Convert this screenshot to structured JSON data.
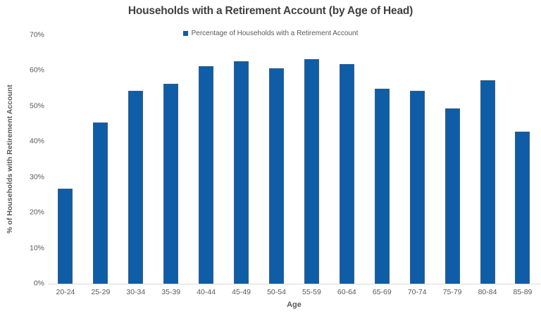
{
  "colors": {
    "bar": "#0E5DA6",
    "bar_border": "#59636C",
    "baseline": "#D9D9D9",
    "tick_text": "#595959",
    "title_text": "#404040",
    "background": "#FFFFFF"
  },
  "chart_data": {
    "type": "bar",
    "title": "Households with a Retirement Account (by Age of Head)",
    "legend": [
      "Percentage of Households with a Retirement Account"
    ],
    "legend_position": "top-center",
    "legend_marker": "filled-square",
    "xlabel": "Age",
    "ylabel": "% of Households with Retirement Account",
    "categories": [
      "20-24",
      "25-29",
      "30-34",
      "35-39",
      "40-44",
      "45-49",
      "50-54",
      "55-59",
      "60-64",
      "65-69",
      "70-74",
      "75-79",
      "80-84",
      "85-89"
    ],
    "values": [
      26.7,
      45.5,
      54.4,
      56.3,
      61.2,
      62.7,
      60.6,
      63.2,
      61.8,
      54.9,
      54.4,
      49.3,
      57.3,
      42.9
    ],
    "ylim": [
      0,
      70
    ],
    "ytick_labels": [
      "0%",
      "10%",
      "20%",
      "30%",
      "40%",
      "50%",
      "60%",
      "70%"
    ],
    "grid": false,
    "bar_color": "#0E5DA6"
  }
}
